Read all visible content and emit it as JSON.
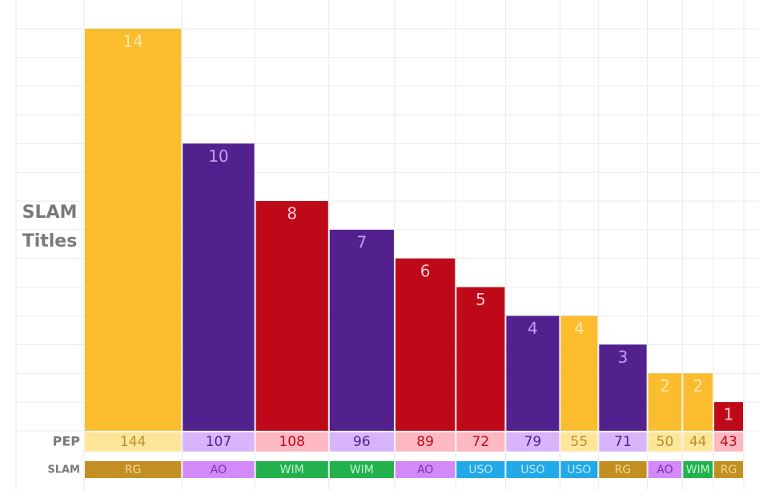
{
  "chart_data": {
    "type": "bar",
    "y_label": "SLAM Titles",
    "values": [
      14,
      10,
      8,
      7,
      6,
      5,
      4,
      4,
      3,
      2,
      2,
      1
    ],
    "colors": [
      "#fbbc2e",
      "#52218e",
      "#be0a18",
      "#52218e",
      "#be0a18",
      "#be0a18",
      "#52218e",
      "#fbbc2e",
      "#52218e",
      "#fbbc2e",
      "#fbbc2e",
      "#be0a18"
    ],
    "value_label_colors": [
      "#fde7ab",
      "#c89bf5",
      "#ffc7cf",
      "#c89bf5",
      "#ffc7cf",
      "#ffc7cf",
      "#c89bf5",
      "#fde7ab",
      "#c89bf5",
      "#fde7ab",
      "#fde7ab",
      "#ffc7cf"
    ],
    "ylim": [
      0,
      15
    ],
    "grid": true,
    "pep": {
      "label": "PEP",
      "values": [
        144,
        107,
        108,
        96,
        89,
        72,
        79,
        55,
        71,
        50,
        44,
        43
      ],
      "colors": [
        "#fde59a",
        "#d8b4fb",
        "#feb8c2",
        "#d8b4fb",
        "#feb8c2",
        "#feb8c2",
        "#d8b4fb",
        "#fde59a",
        "#d8b4fb",
        "#fde59a",
        "#fde59a",
        "#feb8c2"
      ],
      "text_colors": [
        "#b8902a",
        "#52218e",
        "#be0a18",
        "#52218e",
        "#be0a18",
        "#be0a18",
        "#52218e",
        "#b8902a",
        "#52218e",
        "#b8902a",
        "#b8902a",
        "#be0a18"
      ]
    },
    "slam": {
      "label": "SLAM",
      "values": [
        "RG",
        "AO",
        "WIM",
        "WIM",
        "AO",
        "USO",
        "USO",
        "USO",
        "RG",
        "AO",
        "WIM",
        "RG"
      ],
      "colors": {
        "RG": "#c28f22",
        "AO": "#d38af8",
        "WIM": "#22b14c",
        "USO": "#21a9e8"
      },
      "text_colors": {
        "RG": "#f5d98a",
        "AO": "#7b2fb0",
        "WIM": "#c2f5cf",
        "USO": "#c1e9fb"
      }
    }
  }
}
